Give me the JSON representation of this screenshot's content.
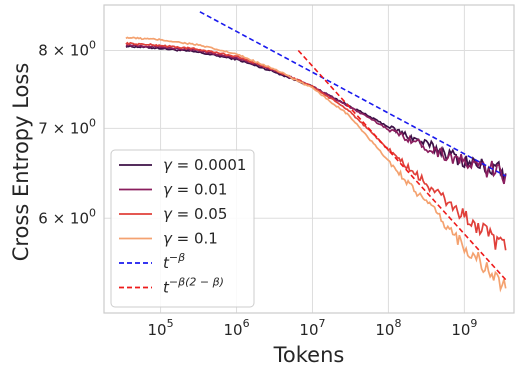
{
  "chart_data": {
    "type": "line",
    "xscale": "log",
    "yscale": "log",
    "xlabel": "Tokens",
    "ylabel": "Cross Entropy Loss",
    "xlim": [
      18000,
      4500000000
    ],
    "ylim": [
      5.1,
      8.65
    ],
    "grid": true,
    "legend_position": "bottom-left",
    "x_ticks": [
      {
        "value": 100000,
        "base": "10",
        "exp": "5"
      },
      {
        "value": 1000000,
        "base": "10",
        "exp": "6"
      },
      {
        "value": 10000000,
        "base": "10",
        "exp": "7"
      },
      {
        "value": 100000000,
        "base": "10",
        "exp": "8"
      },
      {
        "value": 1000000000,
        "base": "10",
        "exp": "9"
      }
    ],
    "y_ticks": [
      {
        "value": 6,
        "mantissa": "6",
        "base": "10",
        "exp": "0"
      },
      {
        "value": 7,
        "mantissa": "7",
        "base": "10",
        "exp": "0"
      },
      {
        "value": 8,
        "mantissa": "8",
        "base": "10",
        "exp": "0"
      }
    ],
    "series": [
      {
        "name": "γ = 0.0001",
        "color": "#3d1146",
        "style": "solid",
        "x": [
          35000,
          100000,
          300000,
          1000000,
          3000000,
          10000000,
          30000000,
          100000000,
          300000000,
          1000000000,
          3500000000
        ],
        "y": [
          8.06,
          8.03,
          7.98,
          7.88,
          7.72,
          7.52,
          7.28,
          7.02,
          6.82,
          6.62,
          6.48
        ]
      },
      {
        "name": "γ = 0.01",
        "color": "#8a1e5e",
        "style": "solid",
        "x": [
          35000,
          100000,
          300000,
          1000000,
          3000000,
          10000000,
          30000000,
          100000000,
          300000000,
          1000000000,
          3500000000
        ],
        "y": [
          8.08,
          8.05,
          8.0,
          7.9,
          7.74,
          7.52,
          7.27,
          6.99,
          6.79,
          6.6,
          6.47
        ]
      },
      {
        "name": "γ = 0.05",
        "color": "#e0403a",
        "style": "solid",
        "x": [
          35000,
          100000,
          300000,
          1000000,
          3000000,
          10000000,
          30000000,
          100000000,
          300000000,
          1000000000,
          3500000000
        ],
        "y": [
          8.1,
          8.07,
          8.02,
          7.92,
          7.75,
          7.52,
          7.22,
          6.75,
          6.38,
          6.02,
          5.68
        ]
      },
      {
        "name": "γ = 0.1",
        "color": "#f4a270",
        "style": "solid",
        "x": [
          35000,
          100000,
          300000,
          1000000,
          3000000,
          10000000,
          30000000,
          100000000,
          300000000,
          1000000000,
          3500000000
        ],
        "y": [
          8.18,
          8.15,
          8.08,
          7.95,
          7.76,
          7.5,
          7.16,
          6.62,
          6.18,
          5.72,
          5.32
        ]
      },
      {
        "name": "t^{-β}",
        "color": "#1a1aee",
        "style": "dashed",
        "x": [
          330000,
          3500000000
        ],
        "y": [
          8.55,
          6.45
        ]
      },
      {
        "name": "t^{-β(2-β)}",
        "color": "#ee1a1a",
        "style": "dashed",
        "x": [
          6500000,
          3500000000
        ],
        "y": [
          8.0,
          5.4
        ]
      }
    ],
    "legend": [
      {
        "prefix": "γ = ",
        "value": "0.0001",
        "color": "#3d1146",
        "style": "solid"
      },
      {
        "prefix": "γ = ",
        "value": "0.01",
        "color": "#8a1e5e",
        "style": "solid"
      },
      {
        "prefix": "γ = ",
        "value": "0.05",
        "color": "#e0403a",
        "style": "solid"
      },
      {
        "prefix": "γ = ",
        "value": "0.1",
        "color": "#f4a270",
        "style": "solid"
      },
      {
        "base": "t",
        "sup": "−β",
        "color": "#1a1aee",
        "style": "dashed"
      },
      {
        "base": "t",
        "sup": "−β(2 − β)",
        "color": "#ee1a1a",
        "style": "dashed"
      }
    ]
  }
}
